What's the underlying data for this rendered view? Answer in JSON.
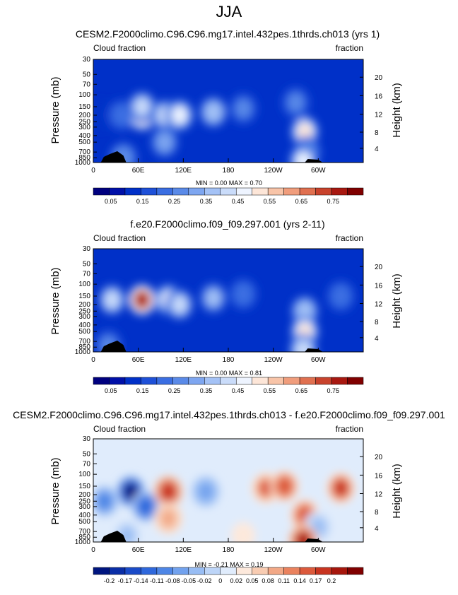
{
  "page": {
    "season": "JJA"
  },
  "chart_data": [
    {
      "type": "heatmap",
      "title": "CESM2.F2000climo.C96.C96.mg17.intel.432pes.1thrds.ch013 (yrs 1)",
      "left_label": "Cloud fraction",
      "right_label": "fraction",
      "ylabel": "Pressure (mb)",
      "y2label": "Height (km)",
      "pressure_ticks": [
        "1000",
        "850",
        "700",
        "500",
        "400",
        "300",
        "250",
        "200",
        "150",
        "100",
        "70",
        "50",
        "30"
      ],
      "height_ticks": [
        "4",
        "8",
        "12",
        "16",
        "20"
      ],
      "lon_ticks": [
        "0",
        "60E",
        "120E",
        "180",
        "120W",
        "60W"
      ],
      "stats": "MIN =   0.00  MAX =   0.70",
      "colorbar_labels": [
        "0.05",
        "0.15",
        "0.25",
        "0.35",
        "0.45",
        "0.55",
        "0.65",
        "0.75"
      ],
      "min": 0.0,
      "max": 0.7,
      "cmap": "seq",
      "features": [
        {
          "lon": 10,
          "p": 200,
          "v": 0.1
        },
        {
          "lon": 38,
          "p": 200,
          "v": 0.22
        },
        {
          "lon": 65,
          "p": 200,
          "v": 0.58
        },
        {
          "lon": 65,
          "p": 150,
          "v": 0.4
        },
        {
          "lon": 95,
          "p": 200,
          "v": 0.4
        },
        {
          "lon": 95,
          "p": 500,
          "v": 0.3
        },
        {
          "lon": 115,
          "p": 200,
          "v": 0.45
        },
        {
          "lon": 160,
          "p": 180,
          "v": 0.36
        },
        {
          "lon": 200,
          "p": 160,
          "v": 0.25
        },
        {
          "lon": 270,
          "p": 130,
          "v": 0.26
        },
        {
          "lon": 282,
          "p": 350,
          "v": 0.5
        },
        {
          "lon": 285,
          "p": 700,
          "v": 0.28
        },
        {
          "lon": 280,
          "p": 950,
          "v": 0.45
        },
        {
          "lon": 40,
          "p": 850,
          "v": 0.28
        }
      ],
      "xlim": [
        0,
        360
      ],
      "ylim": [
        1000,
        30
      ]
    },
    {
      "type": "heatmap",
      "title": "f.e20.F2000climo.f09_f09.297.001 (yrs 2-11)",
      "left_label": "Cloud fraction",
      "right_label": "fraction",
      "ylabel": "Pressure (mb)",
      "y2label": "Height (km)",
      "pressure_ticks": [
        "1000",
        "850",
        "700",
        "500",
        "400",
        "300",
        "250",
        "200",
        "150",
        "100",
        "70",
        "50",
        "30"
      ],
      "height_ticks": [
        "4",
        "8",
        "12",
        "16",
        "20"
      ],
      "lon_ticks": [
        "0",
        "60E",
        "120E",
        "180",
        "120W",
        "60W"
      ],
      "stats": "MIN =   0.00  MAX =   0.81",
      "colorbar_labels": [
        "0.05",
        "0.15",
        "0.25",
        "0.35",
        "0.45",
        "0.55",
        "0.65",
        "0.75"
      ],
      "min": 0.0,
      "max": 0.81,
      "cmap": "seq",
      "features": [
        {
          "lon": 25,
          "p": 170,
          "v": 0.4
        },
        {
          "lon": 65,
          "p": 170,
          "v": 0.75
        },
        {
          "lon": 100,
          "p": 170,
          "v": 0.44
        },
        {
          "lon": 115,
          "p": 200,
          "v": 0.4
        },
        {
          "lon": 160,
          "p": 160,
          "v": 0.34
        },
        {
          "lon": 200,
          "p": 140,
          "v": 0.22
        },
        {
          "lon": 282,
          "p": 250,
          "v": 0.38
        },
        {
          "lon": 282,
          "p": 500,
          "v": 0.48
        },
        {
          "lon": 280,
          "p": 930,
          "v": 0.42
        },
        {
          "lon": 330,
          "p": 150,
          "v": 0.22
        },
        {
          "lon": 20,
          "p": 800,
          "v": 0.24
        }
      ],
      "xlim": [
        0,
        360
      ],
      "ylim": [
        1000,
        30
      ]
    },
    {
      "type": "heatmap",
      "title": "CESM2.F2000climo.C96.C96.mg17.intel.432pes.1thrds.ch013 - f.e20.F2000climo.f09_f09.297.001",
      "left_label": "Cloud fraction",
      "right_label": "fraction",
      "ylabel": "Pressure (mb)",
      "y2label": "Height (km)",
      "pressure_ticks": [
        "1000",
        "850",
        "700",
        "500",
        "400",
        "300",
        "250",
        "200",
        "150",
        "100",
        "70",
        "50",
        "30"
      ],
      "height_ticks": [
        "4",
        "8",
        "12",
        "16",
        "20"
      ],
      "lon_ticks": [
        "0",
        "60E",
        "120E",
        "180",
        "120W",
        "60W"
      ],
      "stats": "MIN =  -0.21  MAX =   0.19",
      "colorbar_labels": [
        "-0.2",
        "-0.17",
        "-0.14",
        "-0.11",
        "-0.08",
        "-0.05",
        "-0.02",
        "0",
        "0.02",
        "0.05",
        "0.08",
        "0.11",
        "0.14",
        "0.17",
        "0.2"
      ],
      "min": -0.21,
      "max": 0.19,
      "cmap": "div",
      "features": [
        {
          "lon": 50,
          "p": 180,
          "v": -0.2
        },
        {
          "lon": 70,
          "p": 300,
          "v": -0.14
        },
        {
          "lon": 15,
          "p": 250,
          "v": -0.1
        },
        {
          "lon": 100,
          "p": 180,
          "v": 0.16
        },
        {
          "lon": 100,
          "p": 450,
          "v": 0.08
        },
        {
          "lon": 150,
          "p": 180,
          "v": -0.08
        },
        {
          "lon": 230,
          "p": 160,
          "v": 0.12
        },
        {
          "lon": 255,
          "p": 150,
          "v": 0.14
        },
        {
          "lon": 282,
          "p": 400,
          "v": 0.13
        },
        {
          "lon": 330,
          "p": 160,
          "v": 0.15
        },
        {
          "lon": 300,
          "p": 600,
          "v": -0.05
        },
        {
          "lon": 200,
          "p": 800,
          "v": 0.03
        },
        {
          "lon": 45,
          "p": 800,
          "v": -0.05
        },
        {
          "lon": 280,
          "p": 950,
          "v": 0.18
        }
      ],
      "xlim": [
        0,
        360
      ],
      "ylim": [
        1000,
        30
      ]
    }
  ],
  "colors": {
    "seq": [
      "#00007f",
      "#0010a8",
      "#0030c8",
      "#1e50d8",
      "#3a6ee2",
      "#5a8ae8",
      "#7ea6f0",
      "#a4c2f6",
      "#cadcfa",
      "#eef4ff",
      "#fde6d8",
      "#f8c4a8",
      "#f09d7c",
      "#e07050",
      "#c8422c",
      "#a81810",
      "#800000"
    ],
    "div": [
      "#00157f",
      "#0a2ea6",
      "#1a4bc8",
      "#2f68dc",
      "#4e86e6",
      "#72a2ee",
      "#98bdf4",
      "#bdd5f8",
      "#e0ecfc",
      "#fde9dc",
      "#f8ccb2",
      "#f2a886",
      "#ea825e",
      "#dc5a3c",
      "#c83420",
      "#a6160c",
      "#800000"
    ]
  }
}
